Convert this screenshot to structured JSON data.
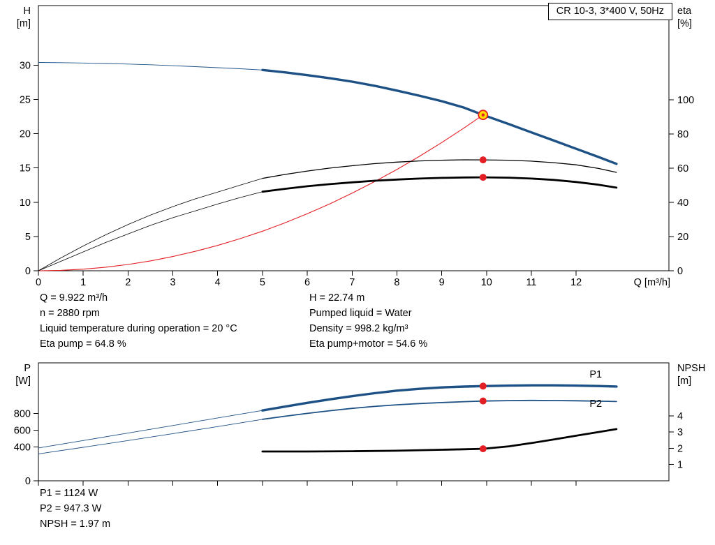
{
  "title_box": "CR 10-3, 3*400 V, 50Hz",
  "info_top": {
    "left": [
      "Q = 9.922 m³/h",
      "n = 2880 rpm",
      "Liquid temperature during operation = 20 °C",
      "Eta pump = 64.8 %"
    ],
    "right": [
      "H = 22.74 m",
      "Pumped liquid = Water",
      "Density = 998.2 kg/m³",
      "Eta pump+motor = 54.6 %"
    ]
  },
  "info_bottom": [
    "P1 = 1124 W",
    "P2 = 947.3 W",
    "NPSH = 1.97 m"
  ],
  "colors": {
    "curve_blue": "#1d5186",
    "curve_red": "#e31e24",
    "curve_black": "#000000",
    "duty_yellow": "#ffdf00"
  },
  "chart_data": [
    {
      "id": "hq",
      "type": "line",
      "title": "CR 10-3, 3*400 V, 50Hz",
      "axes": {
        "x": {
          "range": [
            0,
            14.07
          ],
          "ticks": [
            0,
            1,
            2,
            3,
            4,
            5,
            6,
            7,
            8,
            9,
            10,
            11,
            12
          ],
          "label": "Q [m³/h]",
          "show_tick_labels": true
        },
        "left": {
          "range": [
            0,
            38.7
          ],
          "ticks": [
            0,
            5,
            10,
            15,
            20,
            25,
            30
          ],
          "name": "H",
          "unit": "[m]"
        },
        "right": {
          "range": [
            0,
            155
          ],
          "ticks": [
            0,
            20,
            40,
            60,
            80,
            100
          ],
          "name": "eta",
          "unit": "[%]"
        }
      },
      "series": [
        {
          "name": "pump-curve-preview",
          "axis": "left",
          "color": "#1d5186",
          "width": 0.9,
          "x": [
            0,
            0.5,
            1,
            1.5,
            2,
            2.5,
            3,
            3.5,
            4,
            4.5,
            5
          ],
          "y": [
            30.4,
            30.37,
            30.32,
            30.25,
            30.17,
            30.06,
            29.93,
            29.79,
            29.64,
            29.48,
            29.3
          ]
        },
        {
          "name": "pump-curve",
          "axis": "left",
          "color": "#1d5186",
          "width": 3.4,
          "x": [
            5,
            5.5,
            6,
            6.5,
            7,
            7.5,
            8,
            8.5,
            9,
            9.5,
            9.922,
            10.5,
            11,
            11.5,
            12,
            12.5,
            12.9
          ],
          "y": [
            29.3,
            28.95,
            28.55,
            28.1,
            27.6,
            27.0,
            26.3,
            25.55,
            24.75,
            23.8,
            22.74,
            21.4,
            20.2,
            19.0,
            17.8,
            16.6,
            15.6
          ]
        },
        {
          "name": "system-curve",
          "axis": "left",
          "color": "#e31e24",
          "width": 1.1,
          "x": [
            0,
            0.5,
            1,
            1.5,
            2,
            2.5,
            3,
            3.5,
            4,
            4.5,
            5,
            5.5,
            6,
            6.5,
            7,
            7.5,
            8,
            8.5,
            9,
            9.5,
            9.922
          ],
          "y": [
            0,
            0.06,
            0.23,
            0.52,
            0.92,
            1.44,
            2.08,
            2.83,
            3.7,
            4.68,
            5.77,
            6.99,
            8.32,
            9.76,
            11.32,
            12.99,
            14.78,
            16.69,
            18.71,
            20.85,
            22.74
          ]
        },
        {
          "name": "eta-pump-curve-preview",
          "axis": "right",
          "color": "#000000",
          "width": 0.8,
          "x": [
            0,
            0.5,
            1,
            1.5,
            2,
            2.5,
            3,
            3.5,
            4,
            4.5,
            5
          ],
          "y": [
            0,
            7.5,
            14.5,
            21,
            27,
            32.5,
            37.5,
            42,
            46,
            50,
            54
          ]
        },
        {
          "name": "eta-pump-curve",
          "axis": "right",
          "color": "#000000",
          "width": 1.3,
          "x": [
            5,
            5.5,
            6,
            6.5,
            7,
            7.5,
            8,
            8.5,
            9,
            9.5,
            9.922,
            10.5,
            11,
            11.5,
            12,
            12.5,
            12.9
          ],
          "y": [
            54,
            56.3,
            58.3,
            60,
            61.4,
            62.6,
            63.5,
            64.2,
            64.6,
            64.85,
            64.8,
            64.6,
            64.1,
            63.2,
            61.9,
            59.8,
            57.5
          ]
        },
        {
          "name": "eta-pump-motor-curve-preview",
          "axis": "right",
          "color": "#000000",
          "width": 0.8,
          "x": [
            0,
            0.5,
            1,
            1.5,
            2,
            2.5,
            3,
            3.5,
            4,
            4.5,
            5
          ],
          "y": [
            0,
            5.5,
            11,
            16.5,
            21.5,
            26.5,
            31,
            35,
            39,
            42.8,
            46.2
          ]
        },
        {
          "name": "eta-pump-motor-curve",
          "axis": "right",
          "color": "#000000",
          "width": 2.8,
          "x": [
            5,
            5.5,
            6,
            6.5,
            7,
            7.5,
            8,
            8.5,
            9,
            9.5,
            9.922,
            10.5,
            11,
            11.5,
            12,
            12.5,
            12.9
          ],
          "y": [
            46.2,
            47.9,
            49.4,
            50.6,
            51.7,
            52.6,
            53.3,
            53.9,
            54.3,
            54.55,
            54.6,
            54.4,
            53.9,
            53.1,
            51.9,
            50.3,
            48.6
          ]
        }
      ],
      "markers": [
        {
          "name": "eta-pump-point",
          "axis": "right",
          "x": 9.922,
          "y": 64.8,
          "r": 5,
          "fill": "#e31e24"
        },
        {
          "name": "eta-pump-motor-point",
          "axis": "right",
          "x": 9.922,
          "y": 54.6,
          "r": 5,
          "fill": "#e31e24"
        },
        {
          "name": "duty-point",
          "axis": "left",
          "x": 9.922,
          "y": 22.74,
          "r": 6.5,
          "fill": "#ffdf00",
          "stroke": "#e31e24",
          "stroke_width": 1.8,
          "interactable": true
        },
        {
          "name": "duty-point-center",
          "axis": "left",
          "x": 9.922,
          "y": 22.74,
          "r": 2.2,
          "fill": "#e31e24"
        }
      ],
      "labels": []
    },
    {
      "id": "power",
      "type": "line",
      "axes": {
        "x": {
          "range": [
            0,
            14.07
          ],
          "ticks": [
            0,
            1,
            2,
            3,
            4,
            5,
            6,
            7,
            8,
            9,
            10,
            11,
            12
          ],
          "show_tick_labels": false
        },
        "left": {
          "range": [
            0,
            1400
          ],
          "ticks": [
            0,
            400,
            600,
            800
          ],
          "name": "P",
          "unit": "[W]"
        },
        "right": {
          "range": [
            0,
            7.25
          ],
          "ticks": [
            1,
            2,
            3,
            4
          ],
          "name": "NPSH",
          "unit": "[m]"
        }
      },
      "series": [
        {
          "name": "p1-curve-preview",
          "axis": "left",
          "color": "#1d5186",
          "width": 0.9,
          "x": [
            0,
            1,
            2,
            3,
            4,
            5
          ],
          "y": [
            390,
            478,
            567,
            656,
            746,
            835
          ]
        },
        {
          "name": "p1-curve",
          "axis": "left",
          "color": "#1d5186",
          "width": 3.4,
          "x": [
            5,
            5.5,
            6,
            6.5,
            7,
            7.5,
            8,
            8.5,
            9,
            9.5,
            9.922,
            10.5,
            11,
            11.5,
            12,
            12.5,
            12.9
          ],
          "y": [
            835,
            881,
            925,
            967,
            1005,
            1040,
            1070,
            1092,
            1108,
            1118,
            1124,
            1130,
            1133,
            1133,
            1130,
            1125,
            1119
          ]
        },
        {
          "name": "p2-curve-preview",
          "axis": "left",
          "color": "#1d5186",
          "width": 0.9,
          "x": [
            0,
            1,
            2,
            3,
            4,
            5
          ],
          "y": [
            320,
            398,
            478,
            560,
            644,
            730
          ]
        },
        {
          "name": "p2-curve",
          "axis": "left",
          "color": "#1d5186",
          "width": 1.8,
          "x": [
            5,
            5.5,
            6,
            6.5,
            7,
            7.5,
            8,
            8.5,
            9,
            9.5,
            9.922,
            10.5,
            11,
            11.5,
            12,
            12.5,
            12.9
          ],
          "y": [
            730,
            766,
            800,
            832,
            860,
            883,
            902,
            917,
            929,
            939,
            947,
            952,
            954,
            953,
            950,
            945,
            941
          ]
        },
        {
          "name": "npsh-curve",
          "axis": "right",
          "color": "#000000",
          "width": 2.8,
          "x": [
            5,
            6,
            7,
            8,
            9,
            9.5,
            9.922,
            10.5,
            11,
            11.5,
            12,
            12.5,
            12.9
          ],
          "y": [
            1.8,
            1.8,
            1.82,
            1.85,
            1.91,
            1.94,
            1.97,
            2.12,
            2.32,
            2.54,
            2.77,
            3.0,
            3.18
          ]
        }
      ],
      "markers": [
        {
          "name": "p1-point",
          "axis": "left",
          "x": 9.922,
          "y": 1124,
          "r": 5,
          "fill": "#e31e24"
        },
        {
          "name": "p2-point",
          "axis": "left",
          "x": 9.922,
          "y": 947.3,
          "r": 5,
          "fill": "#e31e24"
        },
        {
          "name": "npsh-point",
          "axis": "right",
          "x": 9.922,
          "y": 1.97,
          "r": 5,
          "fill": "#e31e24"
        }
      ],
      "labels": [
        {
          "name": "p1-curve-label",
          "text": "P1",
          "axis": "left",
          "x": 12.3,
          "y": 1225,
          "color": "#1d5186"
        },
        {
          "name": "p2-curve-label",
          "text": "P2",
          "axis": "left",
          "x": 12.3,
          "y": 880,
          "color": "#1d5186"
        }
      ]
    }
  ]
}
